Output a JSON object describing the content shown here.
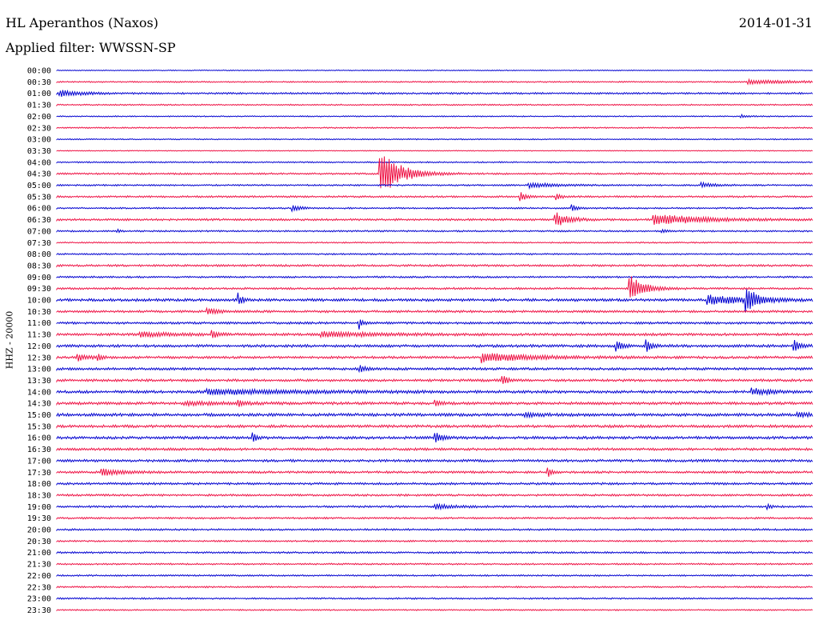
{
  "header": {
    "station": "HL Aperanthos (Naxos)",
    "filter": "Applied filter: WWSSN-SP",
    "date": "2014-01-31"
  },
  "colors": {
    "even_row": "#0000d0",
    "odd_row": "#ee1144"
  },
  "chart_data": {
    "type": "line",
    "title": "HL Aperanthos (Naxos)",
    "subtitle": "Applied filter: WWSSN-SP",
    "ylabel": "HHZ - 20000",
    "xlabel": "",
    "grid": false,
    "legend": "none",
    "row_labels": [
      "00:00",
      "00:30",
      "01:00",
      "01:30",
      "02:00",
      "02:30",
      "03:00",
      "03:30",
      "04:00",
      "04:30",
      "05:00",
      "05:30",
      "06:00",
      "06:30",
      "07:00",
      "07:30",
      "08:00",
      "08:30",
      "09:00",
      "09:30",
      "10:00",
      "10:30",
      "11:00",
      "11:30",
      "12:00",
      "12:30",
      "13:00",
      "13:30",
      "14:00",
      "14:30",
      "15:00",
      "15:30",
      "16:00",
      "16:30",
      "17:00",
      "17:30",
      "18:00",
      "18:30",
      "19:00",
      "19:30",
      "20:00",
      "20:30",
      "21:00",
      "21:30",
      "22:00",
      "22:30",
      "23:00",
      "23:30"
    ],
    "row_colors": [
      "blue",
      "red"
    ],
    "noise_levels": [
      0.4,
      0.6,
      0.8,
      0.6,
      0.5,
      0.6,
      0.5,
      0.4,
      0.6,
      0.8,
      0.7,
      0.8,
      0.7,
      0.9,
      0.7,
      0.6,
      0.7,
      0.9,
      0.8,
      0.9,
      1.2,
      1.0,
      1.0,
      1.1,
      1.2,
      1.1,
      1.1,
      1.1,
      1.2,
      1.2,
      1.3,
      1.2,
      1.2,
      1.1,
      1.1,
      1.0,
      1.0,
      0.9,
      0.9,
      0.8,
      0.8,
      0.7,
      0.8,
      0.7,
      0.7,
      0.7,
      0.7,
      0.6
    ],
    "events": [
      {
        "row": 1,
        "t": 0.915,
        "amp": 2.5,
        "dur": 0.07
      },
      {
        "row": 2,
        "t": 0.005,
        "amp": 4,
        "dur": 0.03
      },
      {
        "row": 4,
        "t": 0.905,
        "amp": 2,
        "dur": 0.01
      },
      {
        "row": 9,
        "t": 0.427,
        "amp": 30,
        "dur": 0.03
      },
      {
        "row": 10,
        "t": 0.625,
        "amp": 3,
        "dur": 0.04
      },
      {
        "row": 10,
        "t": 0.852,
        "amp": 3,
        "dur": 0.02
      },
      {
        "row": 11,
        "t": 0.613,
        "amp": 7,
        "dur": 0.008
      },
      {
        "row": 11,
        "t": 0.661,
        "amp": 5,
        "dur": 0.006
      },
      {
        "row": 12,
        "t": 0.312,
        "amp": 4,
        "dur": 0.012
      },
      {
        "row": 12,
        "t": 0.682,
        "amp": 4,
        "dur": 0.008
      },
      {
        "row": 13,
        "t": 0.66,
        "amp": 9,
        "dur": 0.02
      },
      {
        "row": 13,
        "t": 0.79,
        "amp": 7,
        "dur": 0.07
      },
      {
        "row": 14,
        "t": 0.08,
        "amp": 2,
        "dur": 0.005
      },
      {
        "row": 14,
        "t": 0.8,
        "amp": 2,
        "dur": 0.008
      },
      {
        "row": 19,
        "t": 0.757,
        "amp": 18,
        "dur": 0.02
      },
      {
        "row": 20,
        "t": 0.24,
        "amp": 8,
        "dur": 0.006
      },
      {
        "row": 20,
        "t": 0.861,
        "amp": 6,
        "dur": 0.06
      },
      {
        "row": 20,
        "t": 0.911,
        "amp": 15,
        "dur": 0.015
      },
      {
        "row": 21,
        "t": 0.2,
        "amp": 3,
        "dur": 0.02
      },
      {
        "row": 22,
        "t": 0.4,
        "amp": 7,
        "dur": 0.006
      },
      {
        "row": 23,
        "t": 0.11,
        "amp": 3,
        "dur": 0.05
      },
      {
        "row": 23,
        "t": 0.205,
        "amp": 6,
        "dur": 0.008
      },
      {
        "row": 23,
        "t": 0.35,
        "amp": 3,
        "dur": 0.09
      },
      {
        "row": 24,
        "t": 0.74,
        "amp": 7,
        "dur": 0.008
      },
      {
        "row": 24,
        "t": 0.78,
        "amp": 7,
        "dur": 0.008
      },
      {
        "row": 24,
        "t": 0.975,
        "amp": 8,
        "dur": 0.008
      },
      {
        "row": 25,
        "t": 0.028,
        "amp": 4,
        "dur": 0.015
      },
      {
        "row": 25,
        "t": 0.055,
        "amp": 4,
        "dur": 0.004
      },
      {
        "row": 25,
        "t": 0.563,
        "amp": 6,
        "dur": 0.07
      },
      {
        "row": 26,
        "t": 0.4,
        "amp": 4,
        "dur": 0.01
      },
      {
        "row": 27,
        "t": 0.59,
        "amp": 7,
        "dur": 0.006
      },
      {
        "row": 28,
        "t": 0.2,
        "amp": 3,
        "dur": 0.15
      },
      {
        "row": 28,
        "t": 0.92,
        "amp": 4,
        "dur": 0.03
      },
      {
        "row": 29,
        "t": 0.17,
        "amp": 2,
        "dur": 0.06
      },
      {
        "row": 29,
        "t": 0.24,
        "amp": 4,
        "dur": 0.01
      },
      {
        "row": 29,
        "t": 0.5,
        "amp": 4,
        "dur": 0.01
      },
      {
        "row": 30,
        "t": 0.62,
        "amp": 3,
        "dur": 0.02
      },
      {
        "row": 30,
        "t": 0.98,
        "amp": 3,
        "dur": 0.02
      },
      {
        "row": 32,
        "t": 0.26,
        "amp": 6,
        "dur": 0.005
      },
      {
        "row": 32,
        "t": 0.5,
        "amp": 6,
        "dur": 0.012
      },
      {
        "row": 35,
        "t": 0.06,
        "amp": 4,
        "dur": 0.03
      },
      {
        "row": 35,
        "t": 0.65,
        "amp": 5,
        "dur": 0.006
      },
      {
        "row": 38,
        "t": 0.5,
        "amp": 3,
        "dur": 0.03
      },
      {
        "row": 38,
        "t": 0.94,
        "amp": 3,
        "dur": 0.005
      }
    ]
  }
}
